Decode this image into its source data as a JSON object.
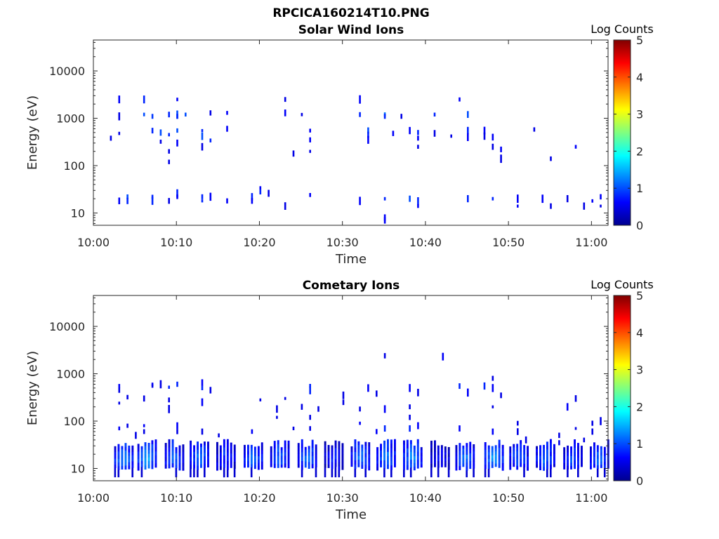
{
  "figure": {
    "title": "RPCICA160214T10.PNG"
  },
  "chart_data": [
    {
      "type": "heatmap",
      "title": "Solar Wind Ions",
      "xlabel": "Time",
      "ylabel": "Energy (eV)",
      "x_ticks": [
        "10:00",
        "10:10",
        "10:20",
        "10:30",
        "10:40",
        "10:50",
        "11:00"
      ],
      "xlim": [
        "10:00",
        "11:02"
      ],
      "y_scale": "log",
      "y_ticks": [
        "10",
        "100",
        "1000",
        "10000"
      ],
      "ylim": [
        5.5,
        45000
      ],
      "colorbar": {
        "label": "Log Counts",
        "range": [
          0,
          5
        ],
        "ticks": [
          "0",
          "1",
          "2",
          "3",
          "4",
          "5"
        ],
        "colormap": "jet"
      },
      "cells": [
        [
          10.03,
          2500,
          0.6
        ],
        [
          10.03,
          1100,
          0.5
        ],
        [
          10.03,
          480,
          0.5
        ],
        [
          10.02,
          380,
          0.5
        ],
        [
          10.06,
          2500,
          0.8
        ],
        [
          10.06,
          1200,
          1.0
        ],
        [
          10.07,
          1100,
          0.9
        ],
        [
          10.07,
          550,
          0.8
        ],
        [
          10.08,
          500,
          1.0
        ],
        [
          10.08,
          320,
          0.5
        ],
        [
          10.1,
          2500,
          0.6
        ],
        [
          10.1,
          1200,
          1.0
        ],
        [
          10.1,
          1100,
          0.8
        ],
        [
          10.11,
          1200,
          1.0
        ],
        [
          10.09,
          1200,
          0.8
        ],
        [
          10.1,
          550,
          1.0
        ],
        [
          10.09,
          450,
          0.8
        ],
        [
          10.1,
          300,
          0.6
        ],
        [
          10.09,
          200,
          0.5
        ],
        [
          10.09,
          120,
          0.5
        ],
        [
          10.13,
          550,
          0.8
        ],
        [
          10.13,
          420,
          1.0
        ],
        [
          10.14,
          340,
          0.8
        ],
        [
          10.13,
          250,
          0.5
        ],
        [
          10.14,
          1300,
          0.5
        ],
        [
          10.16,
          1300,
          0.6
        ],
        [
          10.16,
          600,
          0.6
        ],
        [
          10.23,
          2500,
          0.5
        ],
        [
          10.23,
          1300,
          0.6
        ],
        [
          10.24,
          180,
          0.5
        ],
        [
          10.25,
          1200,
          0.5
        ],
        [
          10.26,
          550,
          0.6
        ],
        [
          10.26,
          350,
          0.6
        ],
        [
          10.26,
          200,
          0.5
        ],
        [
          10.32,
          2500,
          0.6
        ],
        [
          10.32,
          1200,
          0.8
        ],
        [
          10.33,
          550,
          1.0
        ],
        [
          10.33,
          450,
          0.8
        ],
        [
          10.33,
          350,
          0.6
        ],
        [
          10.35,
          1200,
          1.2
        ],
        [
          10.35,
          1100,
          0.8
        ],
        [
          10.36,
          480,
          0.6
        ],
        [
          10.37,
          1100,
          0.5
        ],
        [
          10.38,
          550,
          0.6
        ],
        [
          10.39,
          500,
          0.8
        ],
        [
          10.39,
          380,
          0.6
        ],
        [
          10.39,
          250,
          0.5
        ],
        [
          10.41,
          1200,
          0.8
        ],
        [
          10.41,
          480,
          0.5
        ],
        [
          10.43,
          420,
          0.5
        ],
        [
          10.44,
          2500,
          0.6
        ],
        [
          10.45,
          1200,
          1.0
        ],
        [
          10.45,
          550,
          0.8
        ],
        [
          10.45,
          400,
          0.6
        ],
        [
          10.47,
          550,
          0.6
        ],
        [
          10.47,
          420,
          0.5
        ],
        [
          10.48,
          400,
          0.6
        ],
        [
          10.48,
          250,
          0.5
        ],
        [
          10.49,
          220,
          0.6
        ],
        [
          10.49,
          140,
          0.5
        ],
        [
          10.53,
          580,
          0.5
        ],
        [
          10.55,
          140,
          0.5
        ],
        [
          10.58,
          250,
          0.6
        ],
        [
          10.04,
          22,
          1.0
        ],
        [
          10.04,
          18,
          0.8
        ],
        [
          10.03,
          18,
          0.6
        ],
        [
          10.07,
          22,
          0.8
        ],
        [
          10.07,
          18,
          0.8
        ],
        [
          10.1,
          26,
          0.8
        ],
        [
          10.1,
          22,
          0.6
        ],
        [
          10.09,
          18,
          0.5
        ],
        [
          10.13,
          22,
          0.8
        ],
        [
          10.13,
          18,
          0.8
        ],
        [
          10.14,
          22,
          0.6
        ],
        [
          10.16,
          18,
          0.6
        ],
        [
          10.19,
          22,
          0.8
        ],
        [
          10.19,
          18,
          0.6
        ],
        [
          10.2,
          28,
          0.8
        ],
        [
          10.2,
          34,
          0.6
        ],
        [
          10.21,
          26,
          0.5
        ],
        [
          10.23,
          14,
          0.5
        ],
        [
          10.26,
          24,
          0.6
        ],
        [
          10.32,
          18,
          0.6
        ],
        [
          10.35,
          20,
          0.8
        ],
        [
          10.35,
          7,
          0.6
        ],
        [
          10.35,
          8,
          0.6
        ],
        [
          10.38,
          20,
          1.0
        ],
        [
          10.39,
          18,
          0.8
        ],
        [
          10.39,
          14,
          0.6
        ],
        [
          10.45,
          20,
          0.8
        ],
        [
          10.48,
          20,
          0.8
        ],
        [
          10.51,
          20,
          0.6
        ],
        [
          10.51,
          14,
          0.6
        ],
        [
          10.54,
          20,
          0.6
        ],
        [
          10.55,
          14,
          0.5
        ],
        [
          10.57,
          20,
          0.5
        ],
        [
          10.59,
          14,
          0.5
        ],
        [
          10.6,
          18,
          0.6
        ],
        [
          10.61,
          22,
          0.6
        ],
        [
          10.61,
          14,
          0.5
        ]
      ]
    },
    {
      "type": "heatmap",
      "title": "Cometary Ions",
      "xlabel": "Time",
      "ylabel": "Energy (eV)",
      "x_ticks": [
        "10:00",
        "10:10",
        "10:20",
        "10:30",
        "10:40",
        "10:50",
        "11:00"
      ],
      "xlim": [
        "10:00",
        "11:02"
      ],
      "y_scale": "log",
      "y_ticks": [
        "10",
        "100",
        "1000",
        "10000"
      ],
      "ylim": [
        5.5,
        45000
      ],
      "colorbar": {
        "label": "Log Counts",
        "range": [
          0,
          5
        ],
        "ticks": [
          "0",
          "1",
          "2",
          "3",
          "4",
          "5"
        ],
        "colormap": "jet"
      },
      "bursts": [
        {
          "t": "10:03.7",
          "peak": 1.4
        },
        {
          "t": "10:06.5",
          "peak": 1.6
        },
        {
          "t": "10:09.8",
          "peak": 1.2
        },
        {
          "t": "10:12.8",
          "peak": 1.3
        },
        {
          "t": "10:16.0",
          "peak": 0.9
        },
        {
          "t": "10:19.3",
          "peak": 1.3
        },
        {
          "t": "10:22.5",
          "peak": 1.2
        },
        {
          "t": "10:25.8",
          "peak": 1.3
        },
        {
          "t": "10:29.0",
          "peak": 0.8
        },
        {
          "t": "10:32.2",
          "peak": 1.3
        },
        {
          "t": "10:35.3",
          "peak": 1.3
        },
        {
          "t": "10:38.5",
          "peak": 1.4
        },
        {
          "t": "10:41.8",
          "peak": 0.7
        },
        {
          "t": "10:44.8",
          "peak": 1.3
        },
        {
          "t": "10:48.3",
          "peak": 1.5
        },
        {
          "t": "10:51.3",
          "peak": 1.2
        },
        {
          "t": "10:54.5",
          "peak": 1.2
        },
        {
          "t": "10:57.8",
          "peak": 1.1
        },
        {
          "t": "11:01.0",
          "peak": 1.3
        }
      ],
      "cells": [
        [
          10.03,
          550,
          0.6
        ],
        [
          10.03,
          450,
          0.5
        ],
        [
          10.03,
          240,
          0.5
        ],
        [
          10.04,
          320,
          0.5
        ],
        [
          10.03,
          70,
          0.6
        ],
        [
          10.04,
          80,
          0.5
        ],
        [
          10.05,
          50,
          0.5
        ],
        [
          10.07,
          600,
          0.6
        ],
        [
          10.07,
          550,
          0.5
        ],
        [
          10.08,
          600,
          0.5
        ],
        [
          10.06,
          300,
          0.5
        ],
        [
          10.06,
          80,
          0.6
        ],
        [
          10.06,
          60,
          0.5
        ],
        [
          10.09,
          520,
          0.8
        ],
        [
          10.1,
          600,
          0.8
        ],
        [
          10.09,
          280,
          0.5
        ],
        [
          10.09,
          180,
          0.5
        ],
        [
          10.1,
          80,
          0.6
        ],
        [
          10.1,
          60,
          0.5
        ],
        [
          10.13,
          650,
          0.6
        ],
        [
          10.13,
          500,
          0.8
        ],
        [
          10.13,
          250,
          0.6
        ],
        [
          10.14,
          450,
          0.5
        ],
        [
          10.13,
          60,
          0.5
        ],
        [
          10.15,
          50,
          0.5
        ],
        [
          10.19,
          60,
          0.6
        ],
        [
          10.2,
          280,
          0.5
        ],
        [
          10.22,
          180,
          0.5
        ],
        [
          10.22,
          120,
          0.5
        ],
        [
          10.23,
          300,
          0.5
        ],
        [
          10.24,
          70,
          0.5
        ],
        [
          10.26,
          550,
          0.8
        ],
        [
          10.26,
          450,
          0.8
        ],
        [
          10.25,
          200,
          0.5
        ],
        [
          10.26,
          120,
          0.5
        ],
        [
          10.26,
          70,
          0.5
        ],
        [
          10.27,
          180,
          0.5
        ],
        [
          10.3,
          350,
          0.5
        ],
        [
          10.3,
          250,
          0.5
        ],
        [
          10.32,
          180,
          0.5
        ],
        [
          10.32,
          90,
          0.6
        ],
        [
          10.33,
          500,
          0.6
        ],
        [
          10.34,
          380,
          0.5
        ],
        [
          10.35,
          2400,
          0.5
        ],
        [
          10.35,
          180,
          0.6
        ],
        [
          10.35,
          70,
          0.8
        ],
        [
          10.34,
          60,
          0.6
        ],
        [
          10.38,
          500,
          0.6
        ],
        [
          10.39,
          400,
          0.5
        ],
        [
          10.38,
          200,
          0.5
        ],
        [
          10.38,
          120,
          0.5
        ],
        [
          10.38,
          70,
          0.8
        ],
        [
          10.39,
          80,
          0.6
        ],
        [
          10.42,
          2300,
          0.6
        ],
        [
          10.44,
          550,
          0.8
        ],
        [
          10.45,
          400,
          0.6
        ],
        [
          10.44,
          70,
          0.6
        ],
        [
          10.47,
          550,
          0.8
        ],
        [
          10.48,
          800,
          0.5
        ],
        [
          10.48,
          200,
          0.5
        ],
        [
          10.48,
          500,
          0.6
        ],
        [
          10.49,
          350,
          0.5
        ],
        [
          10.48,
          60,
          0.6
        ],
        [
          10.51,
          90,
          0.5
        ],
        [
          10.51,
          60,
          0.5
        ],
        [
          10.52,
          40,
          0.5
        ],
        [
          10.56,
          50,
          0.5
        ],
        [
          10.56,
          35,
          0.5
        ],
        [
          10.57,
          200,
          0.6
        ],
        [
          10.58,
          300,
          0.5
        ],
        [
          10.58,
          70,
          0.5
        ],
        [
          10.59,
          40,
          0.5
        ],
        [
          10.6,
          90,
          0.5
        ],
        [
          10.61,
          100,
          0.5
        ],
        [
          10.6,
          60,
          0.5
        ]
      ]
    }
  ]
}
